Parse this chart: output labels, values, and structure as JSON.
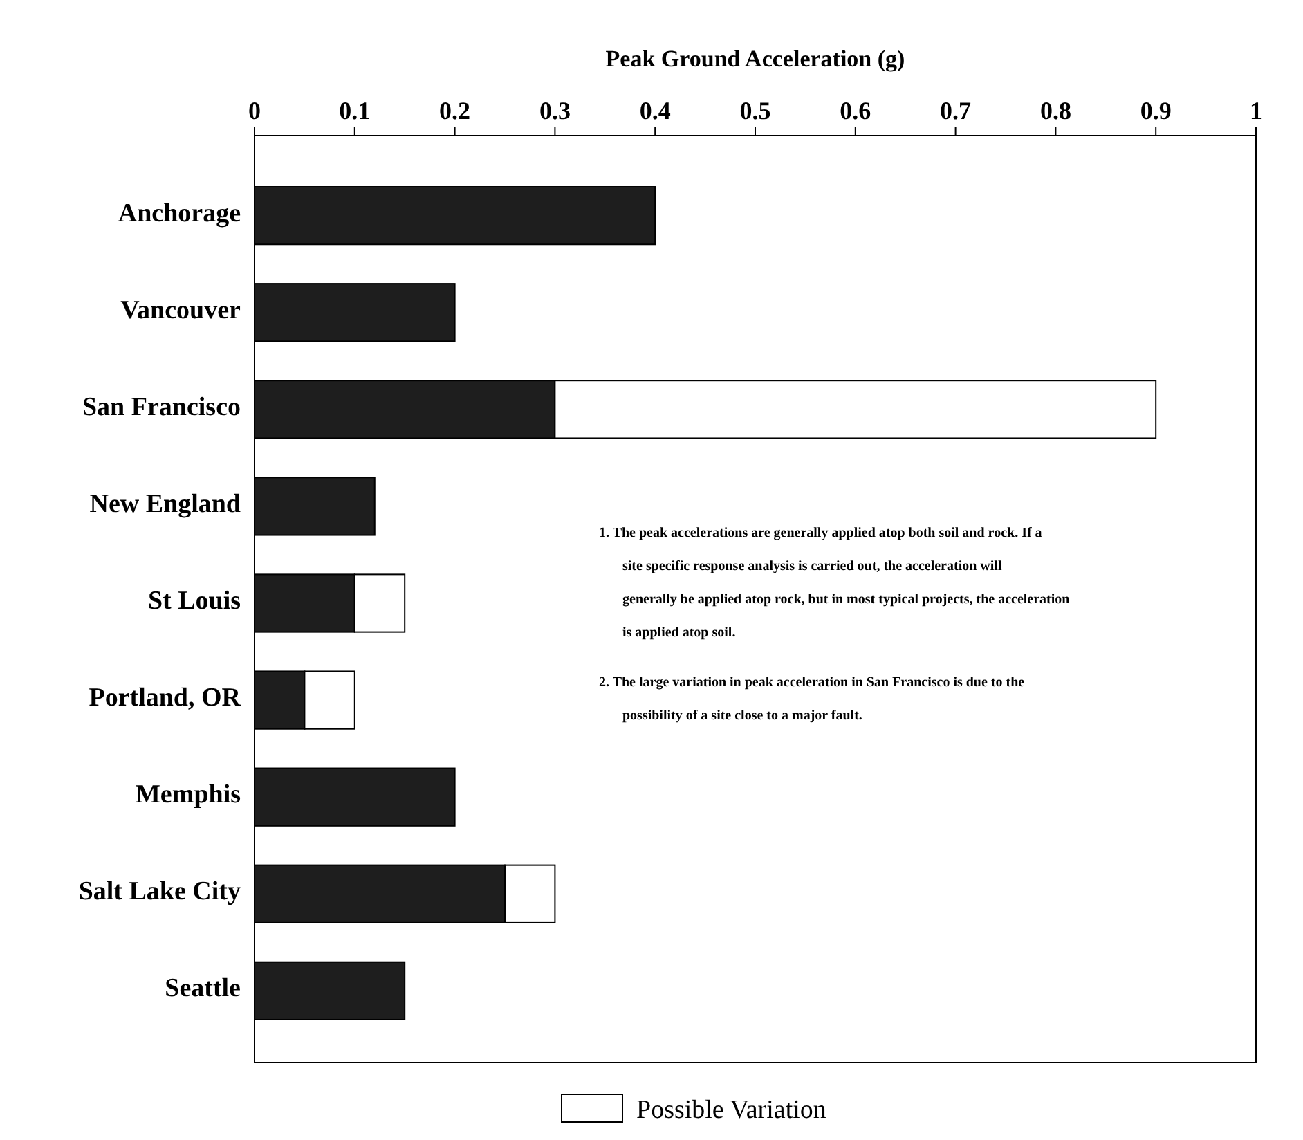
{
  "chart_data": {
    "type": "bar",
    "orientation": "horizontal",
    "stacked": true,
    "xlabel": "Peak Ground Acceleration (g)",
    "categories": [
      "Anchorage",
      "Vancouver",
      "San Francisco",
      "New England",
      "St Louis",
      "Portland, OR",
      "Memphis",
      "Salt Lake City",
      "Seattle"
    ],
    "series": [
      {
        "color": "#1e1e1e",
        "values": [
          0.4,
          0.2,
          0.3,
          0.12,
          0.1,
          0.05,
          0.2,
          0.25,
          0.15
        ]
      },
      {
        "name": "Possible Variation",
        "color": "#ffffff",
        "values": [
          null,
          null,
          0.6,
          null,
          0.05,
          0.05,
          null,
          0.05,
          null
        ]
      }
    ],
    "xlim": [
      0,
      1
    ],
    "xticks": [
      0,
      0.1,
      0.2,
      0.3,
      0.4,
      0.5,
      0.6,
      0.7,
      0.8,
      0.9,
      1
    ],
    "legend": "bottom",
    "annotations": [
      "1. The peak accelerations are generally applied atop both soil and rock. If a site specific response analysis is carried out, the acceleration will generally be applied atop rock, but in most typical projects, the acceleration is applied atop soil.",
      "2. The large variation in peak acceleration in San Francisco is due to the possibility of a site close to a major fault."
    ]
  }
}
